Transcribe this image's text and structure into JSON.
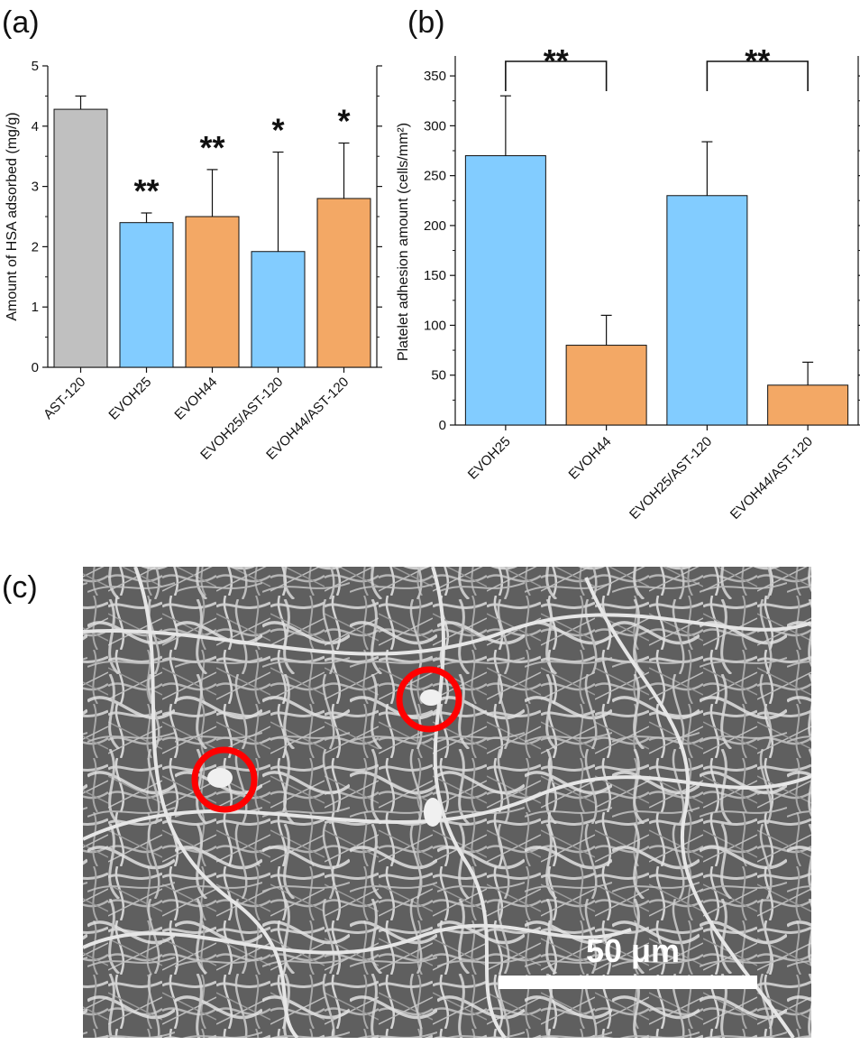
{
  "panels": {
    "a": "(a)",
    "b": "(b)",
    "c": "(c)"
  },
  "colors": {
    "gray": "#c0c0c0",
    "blue": "#82ccff",
    "orange": "#f3a865",
    "scale_bar": "#ffffff",
    "circle": "#ff0000"
  },
  "chart_data": [
    {
      "id": "a",
      "type": "bar",
      "ylabel": "Amount of HSA adsorbed (mg/g)",
      "ylim": [
        0,
        5
      ],
      "yticks": [
        0,
        1,
        2,
        3,
        4,
        5
      ],
      "categories": [
        "AST-120",
        "EVOH25",
        "EVOH44",
        "EVOH25/AST-120",
        "EVOH44/AST-120"
      ],
      "values": [
        4.28,
        2.4,
        2.5,
        1.92,
        2.8
      ],
      "errors": [
        0.22,
        0.16,
        0.78,
        1.65,
        0.92
      ],
      "colors": [
        "gray",
        "blue",
        "orange",
        "blue",
        "orange"
      ],
      "significance": [
        "",
        "**",
        "**",
        "*",
        "*"
      ]
    },
    {
      "id": "b",
      "type": "bar",
      "ylabel": "Platelet adhesion amount (cells/mm²)",
      "ylim": [
        0,
        370
      ],
      "yticks": [
        0,
        50,
        100,
        150,
        200,
        250,
        300,
        350
      ],
      "categories": [
        "EVOH25",
        "EVOH44",
        "EVOH25/AST-120",
        "EVOH44/AST-120"
      ],
      "values": [
        270,
        80,
        230,
        40
      ],
      "errors": [
        60,
        30,
        54,
        23
      ],
      "colors": [
        "blue",
        "orange",
        "blue",
        "orange"
      ],
      "brackets": [
        {
          "from": 0,
          "to": 1,
          "label": "**"
        },
        {
          "from": 2,
          "to": 3,
          "label": "**"
        }
      ]
    }
  ],
  "sem": {
    "scale_label": "50 μm",
    "marked_platelets": 2
  }
}
